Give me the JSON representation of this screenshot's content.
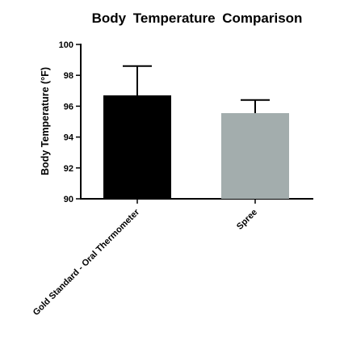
{
  "chart_data": {
    "type": "bar",
    "title": "Body  Temperature  Comparison",
    "xlabel": "",
    "ylabel": "Body Temperature  (°F)",
    "ylim": [
      90,
      100
    ],
    "yticks": [
      "90",
      "92",
      "94",
      "96",
      "98",
      "100"
    ],
    "categories": [
      "Gold Standard - Oral Thermometer",
      "Spree"
    ],
    "values": [
      96.7,
      95.55
    ],
    "error_upper": [
      98.6,
      96.4
    ],
    "bar_colors": [
      "#000000",
      "#a3adad"
    ],
    "grid": false,
    "legend": "none"
  }
}
